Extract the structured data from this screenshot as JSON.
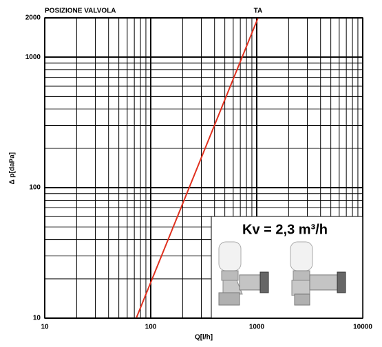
{
  "chart_data": {
    "type": "line",
    "title": "POSIZIONE VALVOLA",
    "xlabel": "Q[l/h]",
    "ylabel": "Δ p[daPa]",
    "annotation": "Kv = 2,3 m³/h",
    "log_x": true,
    "log_y": true,
    "grid": true,
    "xlim": [
      10,
      10000
    ],
    "ylim": [
      10,
      2000
    ],
    "xticks": [
      10,
      100,
      1000,
      10000
    ],
    "yticks": [
      10,
      100,
      1000,
      2000
    ],
    "xgrid": [
      20,
      30,
      40,
      50,
      60,
      70,
      80,
      90,
      200,
      300,
      400,
      500,
      600,
      700,
      800,
      900,
      2000,
      3000,
      4000,
      5000,
      6000,
      7000,
      8000,
      9000
    ],
    "ygrid": [
      20,
      30,
      40,
      50,
      60,
      70,
      80,
      90,
      200,
      300,
      400,
      500,
      600,
      700,
      800,
      900
    ],
    "series": [
      {
        "name": "TA",
        "color": "#e0301e",
        "x": [
          73,
          1029
        ],
        "values": [
          10,
          2000
        ]
      }
    ]
  }
}
